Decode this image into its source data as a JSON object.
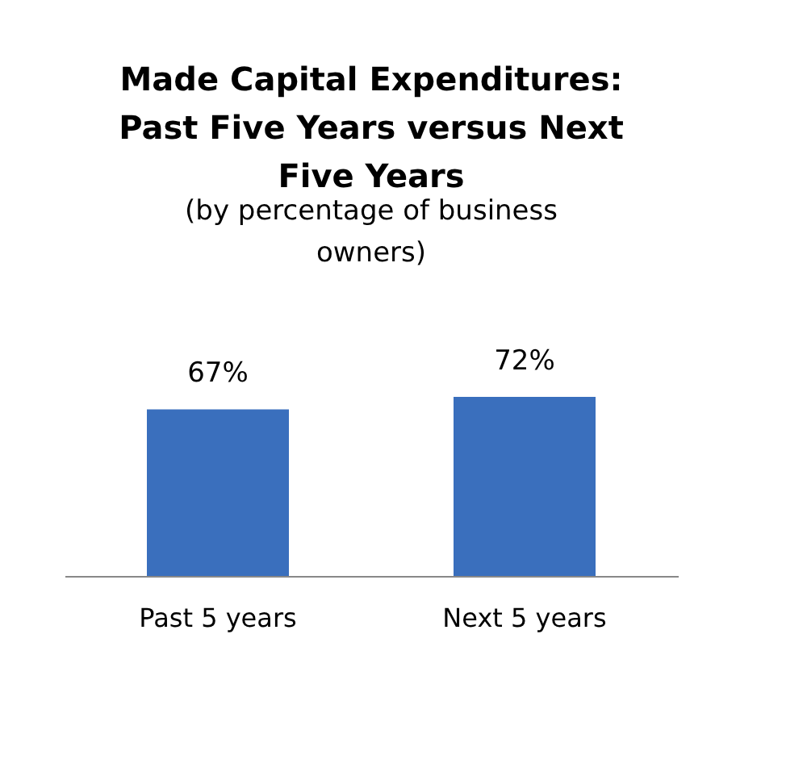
{
  "chart_data": {
    "type": "bar",
    "title": "Made Capital  Expenditures: Past Five Years versus Next Five Years",
    "subtitle": "(by percentage of business owners)",
    "categories": [
      "Past 5 years",
      "Next 5 years"
    ],
    "values": [
      67,
      72
    ],
    "value_labels": [
      "67%",
      "72%"
    ],
    "color": "#3a6fbd"
  }
}
